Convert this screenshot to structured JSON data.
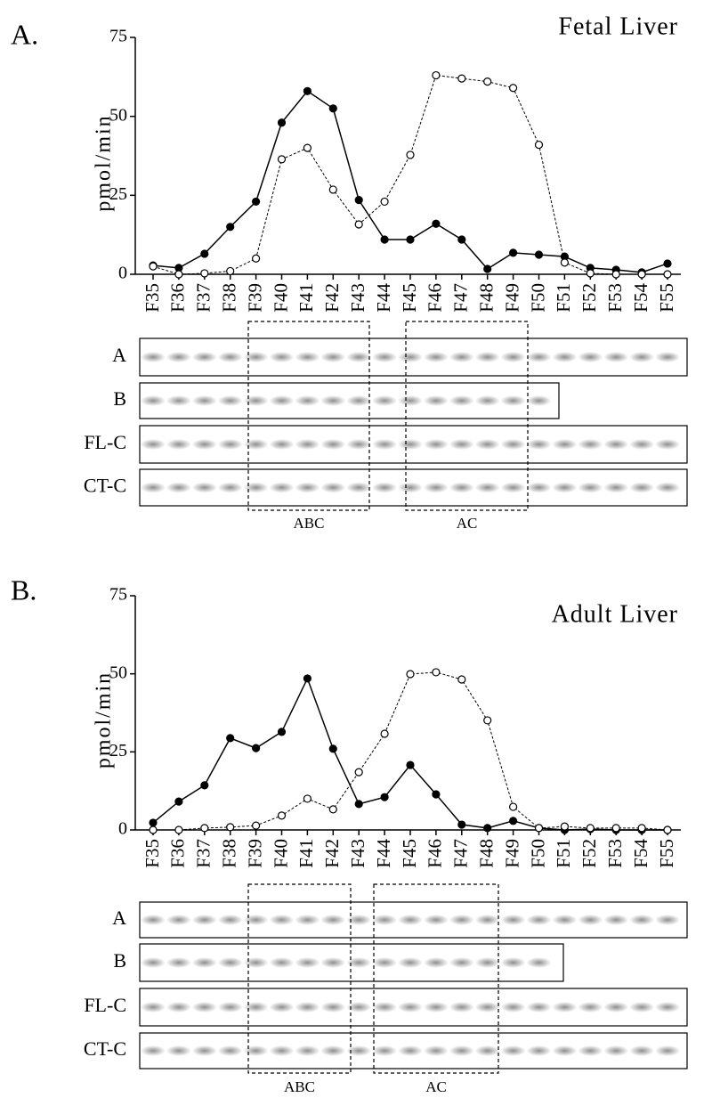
{
  "chart_data": [
    {
      "type": "line",
      "panel_label": "A.",
      "title": "Fetal Liver",
      "y_label": "pmol/min",
      "categories": [
        "F35",
        "F36",
        "F37",
        "F38",
        "F39",
        "F40",
        "F41",
        "F42",
        "F43",
        "F44",
        "F45",
        "F46",
        "F47",
        "F48",
        "F49",
        "F50",
        "F51",
        "F52",
        "F53",
        "F54",
        "F55"
      ],
      "series": [
        {
          "color": "#000000",
          "marker": "filled",
          "dash": false,
          "values": [
            2.8,
            2,
            6.5,
            15,
            23,
            48,
            58,
            52.5,
            23.5,
            11,
            11,
            16,
            11,
            1.7,
            6.8,
            6.2,
            5.6,
            2,
            1.4,
            0.6,
            3.4
          ]
        },
        {
          "color": "#000000",
          "marker": "open",
          "dash": true,
          "values": [
            2.5,
            0,
            0.3,
            1,
            5,
            36.4,
            40,
            26.8,
            15.8,
            23,
            37.8,
            63,
            62,
            61,
            59,
            41,
            3.7,
            0.3,
            0,
            0,
            0
          ]
        }
      ],
      "ylim": [
        0,
        75
      ],
      "yticks": [
        0,
        25,
        50,
        75
      ],
      "blot_rows": [
        "A",
        "B",
        "FL-C",
        "CT-C"
      ],
      "box_labels": [
        "ABC",
        "AC"
      ]
    },
    {
      "type": "line",
      "panel_label": "B.",
      "title": "Adult Liver",
      "y_label": "pmol/min",
      "categories": [
        "F35",
        "F36",
        "F37",
        "F38",
        "F39",
        "F40",
        "F41",
        "F42",
        "F43",
        "F44",
        "F45",
        "F46",
        "F47",
        "F48",
        "F49",
        "F50",
        "F51",
        "F52",
        "F53",
        "F54",
        "F55"
      ],
      "series": [
        {
          "color": "#000000",
          "marker": "filled",
          "dash": false,
          "values": [
            2.3,
            9.1,
            14.3,
            29.4,
            26.2,
            31.4,
            48.5,
            26,
            8.3,
            10.5,
            20.8,
            11.4,
            1.7,
            0.6,
            2.9,
            0.6,
            0,
            0.3,
            0,
            0,
            0
          ]
        },
        {
          "color": "#000000",
          "marker": "open",
          "dash": true,
          "values": [
            0,
            0,
            0.6,
            0.9,
            1.4,
            4.6,
            10,
            6.6,
            18.5,
            30.8,
            49.9,
            50.5,
            48.2,
            35.1,
            7.4,
            0.6,
            1.1,
            0.6,
            0.6,
            0.6,
            0
          ]
        }
      ],
      "ylim": [
        0,
        75
      ],
      "yticks": [
        0,
        25,
        50,
        75
      ],
      "blot_rows": [
        "A",
        "B",
        "FL-C",
        "CT-C"
      ],
      "box_labels": [
        "ABC",
        "AC"
      ]
    }
  ]
}
